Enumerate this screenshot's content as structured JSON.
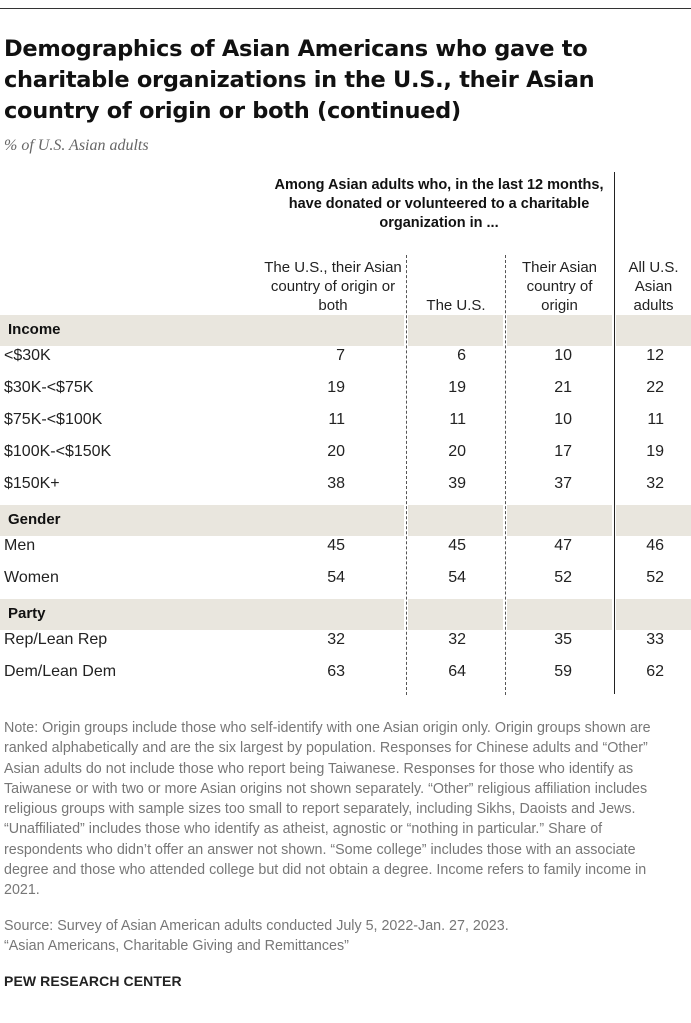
{
  "title": "Demographics of Asian Americans who gave to charitable organizations in the U.S., their Asian country of origin or both (continued)",
  "subtitle": "% of U.S. Asian adults",
  "span_header": "Among Asian adults who, in the last 12 months, have donated or volunteered to a charitable organization in ...",
  "columns": [
    "The U.S., their Asian country of origin or both",
    "The U.S.",
    "Their Asian country of origin",
    "All U.S. Asian adults"
  ],
  "chart_data": {
    "type": "table",
    "title": "Demographics of Asian Americans who gave to charitable organizations in the U.S., their Asian country of origin or both (continued)",
    "columns": [
      "The U.S., their Asian country of origin or both",
      "The U.S.",
      "Their Asian country of origin",
      "All U.S. Asian adults"
    ],
    "groups": [
      {
        "name": "Income",
        "rows": [
          {
            "label": "<$30K",
            "values": [
              7,
              6,
              10,
              12
            ]
          },
          {
            "label": "$30K-<$75K",
            "values": [
              19,
              19,
              21,
              22
            ]
          },
          {
            "label": "$75K-<$100K",
            "values": [
              11,
              11,
              10,
              11
            ]
          },
          {
            "label": "$100K-<$150K",
            "values": [
              20,
              20,
              17,
              19
            ]
          },
          {
            "label": "$150K+",
            "values": [
              38,
              39,
              37,
              32
            ]
          }
        ]
      },
      {
        "name": "Gender",
        "rows": [
          {
            "label": "Men",
            "values": [
              45,
              45,
              47,
              46
            ]
          },
          {
            "label": "Women",
            "values": [
              54,
              54,
              52,
              52
            ]
          }
        ]
      },
      {
        "name": "Party",
        "rows": [
          {
            "label": "Rep/Lean Rep",
            "values": [
              32,
              32,
              35,
              33
            ]
          },
          {
            "label": "Dem/Lean Dem",
            "values": [
              63,
              64,
              59,
              62
            ]
          }
        ]
      }
    ]
  },
  "note": "Note: Origin groups include those who self-identify with one Asian origin only. Origin groups shown are ranked alphabetically and are the six largest by population. Responses for Chinese adults and “Other” Asian adults do not include those who report being Taiwanese. Responses for those who identify as Taiwanese or with two or more Asian origins not shown separately. “Other” religious affiliation includes religious groups with sample sizes too small to report separately, including Sikhs, Daoists and Jews. “Unaffiliated” includes those who identify as atheist, agnostic or “nothing in particular.” Share of respondents who didn’t offer an answer not shown. “Some college” includes those with an associate degree and those who attended college but did not obtain a degree. Income refers to family income in 2021.",
  "source": "Source: Survey of Asian American adults conducted July 5, 2022-Jan. 27, 2023.",
  "report": "“Asian Americans, Charitable Giving and Remittances”",
  "brand": "PEW RESEARCH CENTER",
  "colors": {
    "band": "#e9e6de",
    "text": "#222222",
    "note": "#777777"
  }
}
